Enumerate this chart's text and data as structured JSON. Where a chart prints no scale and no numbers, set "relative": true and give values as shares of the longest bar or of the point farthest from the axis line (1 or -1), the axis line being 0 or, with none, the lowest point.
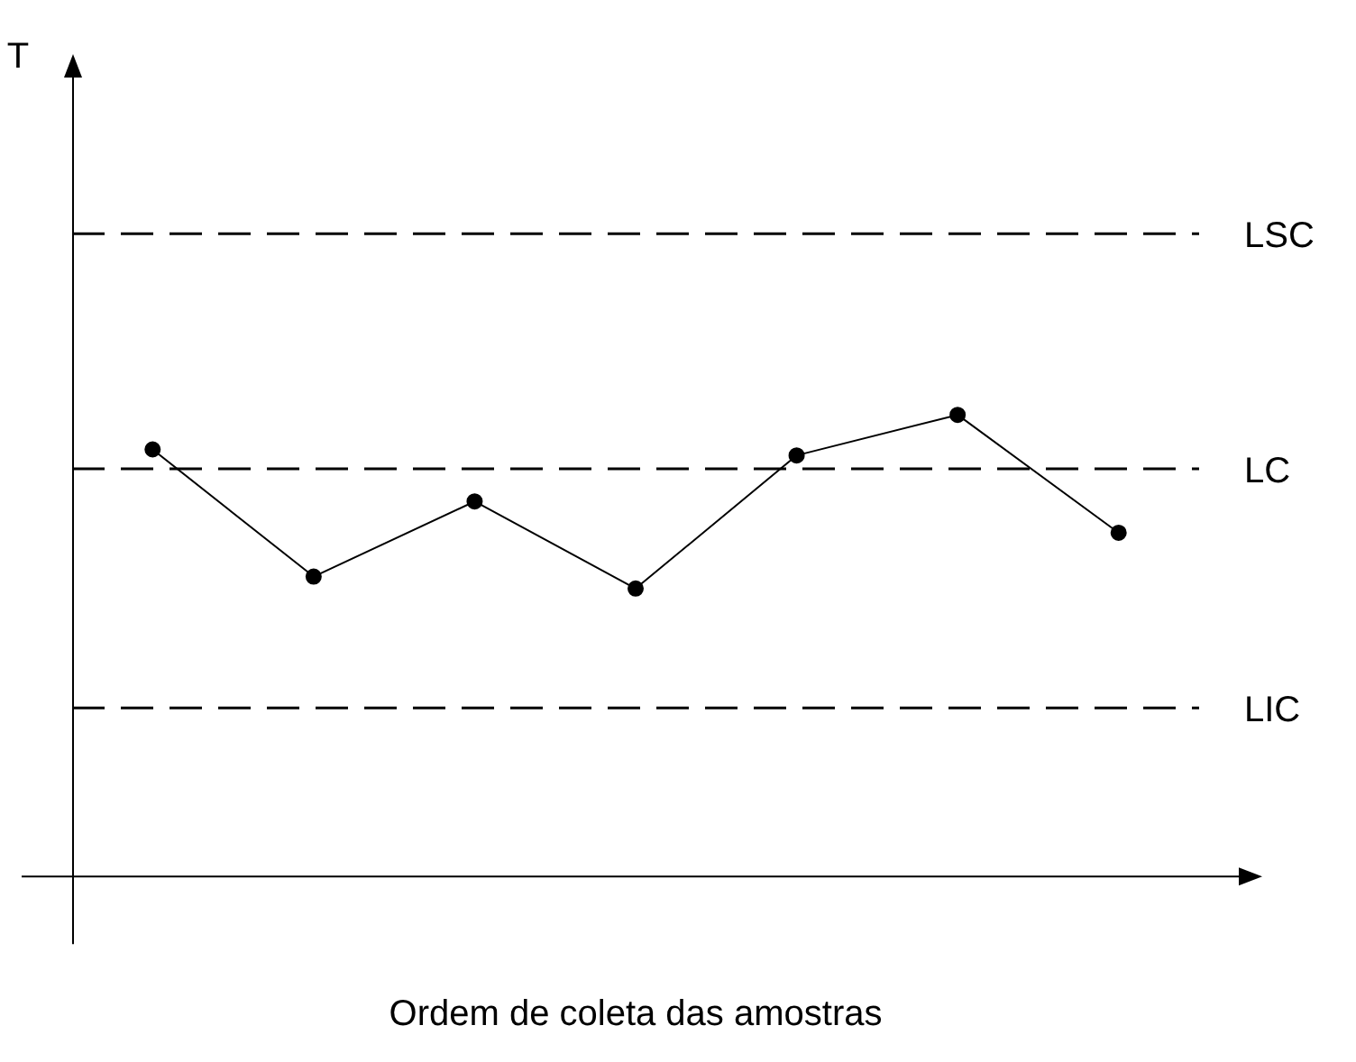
{
  "chart_data": {
    "type": "line",
    "xlabel": "Ordem de coleta das amostras",
    "annotations": [
      "T"
    ],
    "relative": true,
    "categories": [
      null,
      null,
      null,
      null,
      null,
      null,
      null
    ],
    "series": [
      {
        "color": "#000000",
        "values": [
          0.925,
          0.649,
          0.812,
          0.623,
          0.912,
          1,
          0.744
        ]
      }
    ],
    "ref_lines": [
      {
        "axis": "y",
        "value": 1.393,
        "label": "LSC",
        "line_style": "dashed",
        "color": "#000000"
      },
      {
        "axis": "y",
        "value": 0.883,
        "label": "LC",
        "line_style": "dashed",
        "color": "#000000"
      },
      {
        "axis": "y",
        "value": 0.364,
        "label": "LIC",
        "line_style": "dashed",
        "color": "#000000"
      }
    ],
    "marker": "circle",
    "line_style": "solid",
    "legend": false,
    "grid": false
  }
}
